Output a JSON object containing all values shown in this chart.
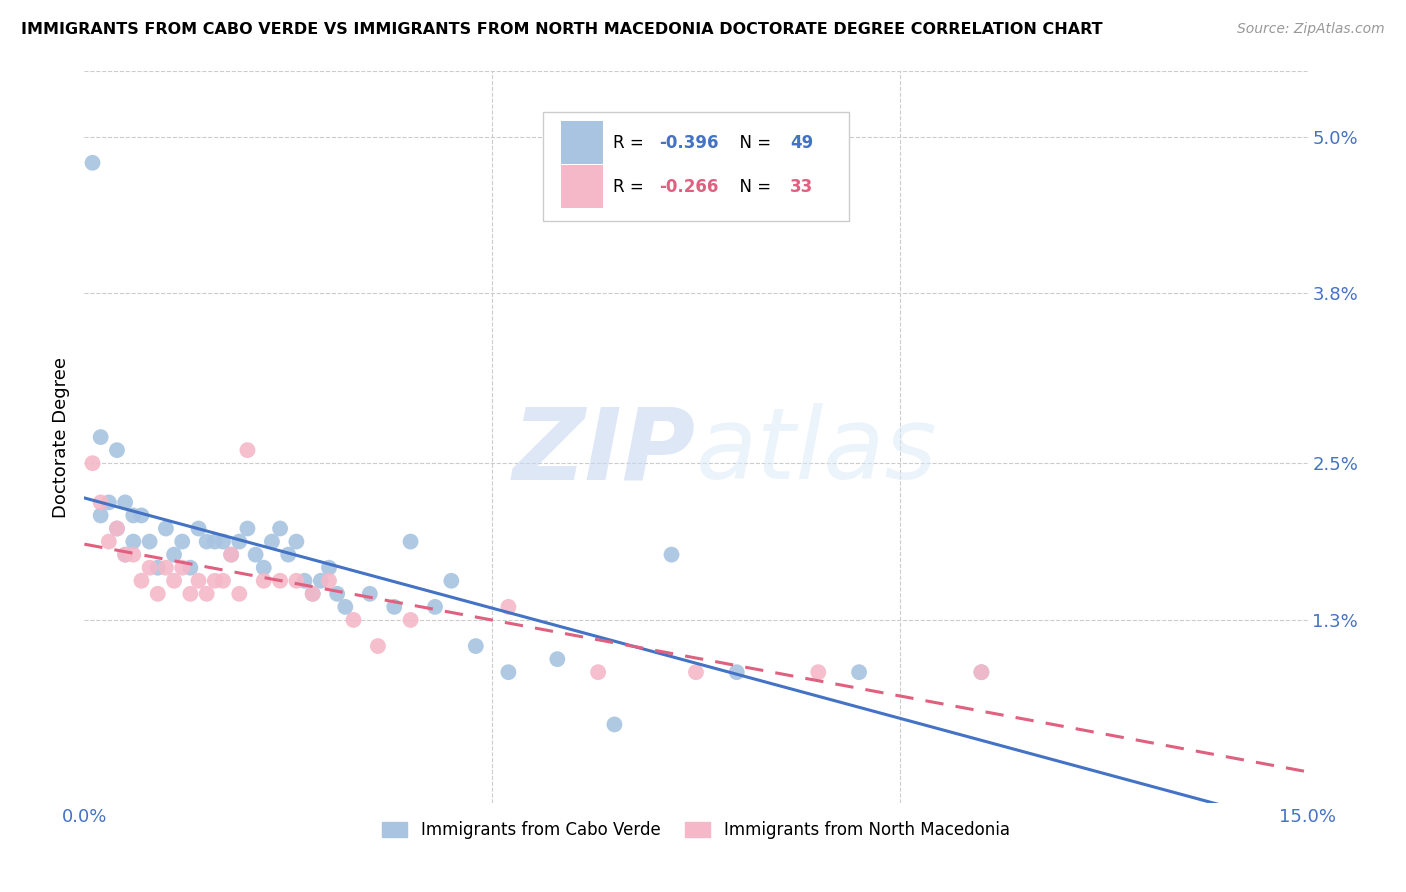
{
  "title": "IMMIGRANTS FROM CABO VERDE VS IMMIGRANTS FROM NORTH MACEDONIA DOCTORATE DEGREE CORRELATION CHART",
  "source": "Source: ZipAtlas.com",
  "ylabel": "Doctorate Degree",
  "xmin": 0.0,
  "xmax": 0.15,
  "ymin": -0.001,
  "ymax": 0.055,
  "yticks": [
    0.0,
    0.013,
    0.025,
    0.038,
    0.05
  ],
  "ytick_labels": [
    "",
    "1.3%",
    "2.5%",
    "3.8%",
    "5.0%"
  ],
  "watermark_zip": "ZIP",
  "watermark_atlas": "atlas",
  "series": [
    {
      "name": "Immigrants from Cabo Verde",
      "color": "#a8c4e0",
      "R": -0.396,
      "N": 49,
      "line_color": "#4472c4",
      "line_style": "solid",
      "x": [
        0.001,
        0.002,
        0.002,
        0.003,
        0.004,
        0.004,
        0.005,
        0.005,
        0.006,
        0.006,
        0.007,
        0.008,
        0.009,
        0.01,
        0.011,
        0.012,
        0.013,
        0.014,
        0.015,
        0.016,
        0.017,
        0.018,
        0.019,
        0.02,
        0.021,
        0.022,
        0.023,
        0.024,
        0.025,
        0.026,
        0.027,
        0.028,
        0.029,
        0.03,
        0.031,
        0.032,
        0.035,
        0.038,
        0.04,
        0.043,
        0.045,
        0.048,
        0.052,
        0.058,
        0.065,
        0.072,
        0.08,
        0.095,
        0.11
      ],
      "y": [
        0.048,
        0.027,
        0.021,
        0.022,
        0.026,
        0.02,
        0.022,
        0.018,
        0.021,
        0.019,
        0.021,
        0.019,
        0.017,
        0.02,
        0.018,
        0.019,
        0.017,
        0.02,
        0.019,
        0.019,
        0.019,
        0.018,
        0.019,
        0.02,
        0.018,
        0.017,
        0.019,
        0.02,
        0.018,
        0.019,
        0.016,
        0.015,
        0.016,
        0.017,
        0.015,
        0.014,
        0.015,
        0.014,
        0.019,
        0.014,
        0.016,
        0.011,
        0.009,
        0.01,
        0.005,
        0.018,
        0.009,
        0.009,
        0.009
      ]
    },
    {
      "name": "Immigrants from North Macedonia",
      "color": "#f4b8c8",
      "R": -0.266,
      "N": 33,
      "line_color": "#e06080",
      "line_style": "dashed",
      "x": [
        0.001,
        0.002,
        0.003,
        0.004,
        0.005,
        0.006,
        0.007,
        0.008,
        0.009,
        0.01,
        0.011,
        0.012,
        0.013,
        0.014,
        0.015,
        0.016,
        0.017,
        0.018,
        0.019,
        0.02,
        0.022,
        0.024,
        0.026,
        0.028,
        0.03,
        0.033,
        0.036,
        0.04,
        0.052,
        0.063,
        0.075,
        0.09,
        0.11
      ],
      "y": [
        0.025,
        0.022,
        0.019,
        0.02,
        0.018,
        0.018,
        0.016,
        0.017,
        0.015,
        0.017,
        0.016,
        0.017,
        0.015,
        0.016,
        0.015,
        0.016,
        0.016,
        0.018,
        0.015,
        0.026,
        0.016,
        0.016,
        0.016,
        0.015,
        0.016,
        0.013,
        0.011,
        0.013,
        0.014,
        0.009,
        0.009,
        0.009,
        0.009
      ]
    }
  ],
  "legend_box": {
    "R1": "-0.396",
    "N1": "49",
    "R2": "-0.266",
    "N2": "33",
    "color1": "#4472c4",
    "color2": "#e06080",
    "patch_color1": "#a8c4e0",
    "patch_color2": "#f4b8c8"
  }
}
